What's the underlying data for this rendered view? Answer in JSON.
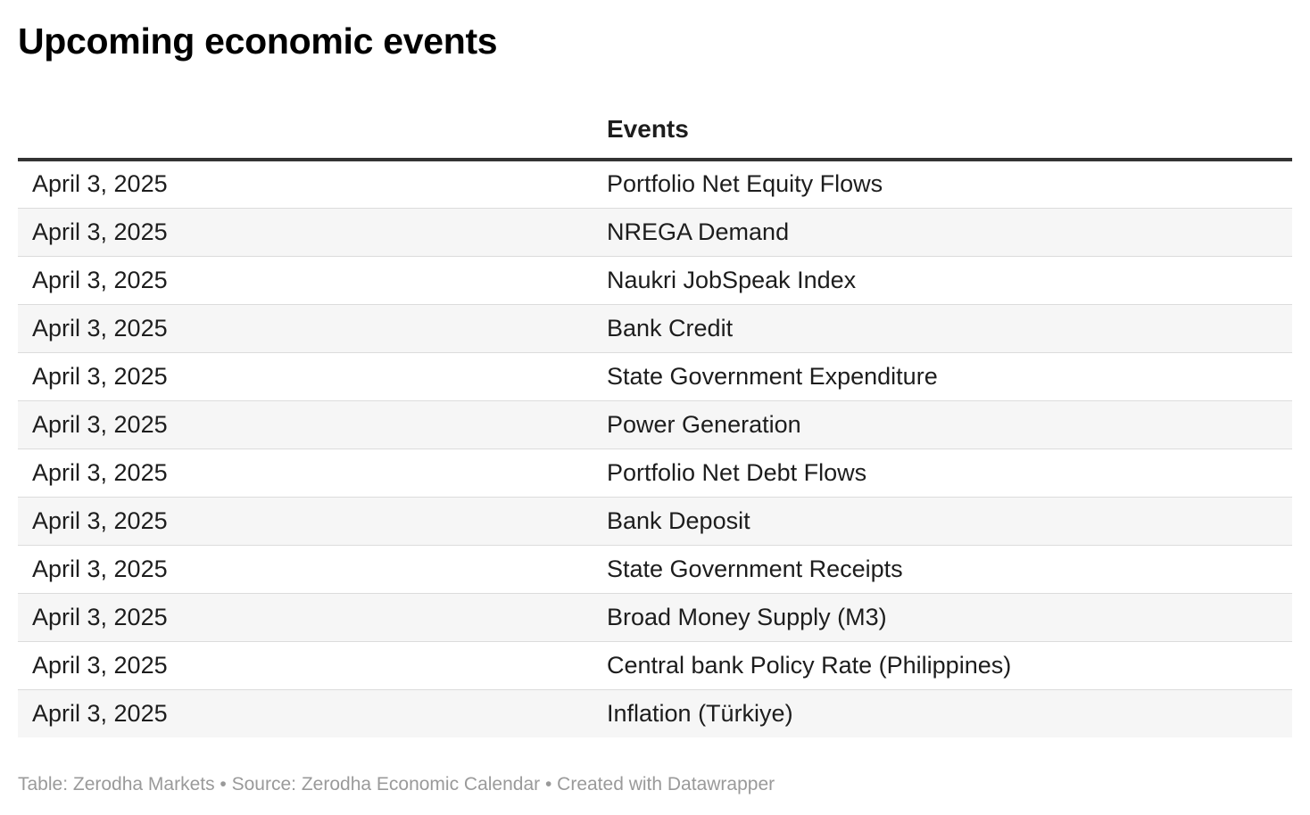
{
  "title": "Upcoming economic events",
  "table": {
    "headers": [
      "",
      "Events"
    ],
    "rows": [
      {
        "date": "April 3, 2025",
        "event": "Portfolio Net Equity Flows"
      },
      {
        "date": "April 3, 2025",
        "event": "NREGA Demand"
      },
      {
        "date": "April 3, 2025",
        "event": "Naukri JobSpeak Index"
      },
      {
        "date": "April 3, 2025",
        "event": "Bank Credit"
      },
      {
        "date": "April 3, 2025",
        "event": "State Government Expenditure"
      },
      {
        "date": "April 3, 2025",
        "event": "Power Generation"
      },
      {
        "date": "April 3, 2025",
        "event": "Portfolio Net Debt Flows"
      },
      {
        "date": "April 3, 2025",
        "event": "Bank Deposit"
      },
      {
        "date": "April 3, 2025",
        "event": "State Government Receipts"
      },
      {
        "date": "April 3, 2025",
        "event": "Broad Money Supply (M3)"
      },
      {
        "date": "April 3, 2025",
        "event": "Central bank Policy Rate (Philippines)"
      },
      {
        "date": "April 3, 2025",
        "event": "Inflation (Türkiye)"
      }
    ]
  },
  "footer": "Table: Zerodha Markets • Source: Zerodha Economic Calendar • Created with Datawrapper",
  "colors": {
    "text": "#1d1d1d",
    "header_rule": "#333333",
    "row_stripe": "#f6f6f6",
    "row_divider": "#dcdcdc",
    "footer_text": "#9a9a9a"
  }
}
